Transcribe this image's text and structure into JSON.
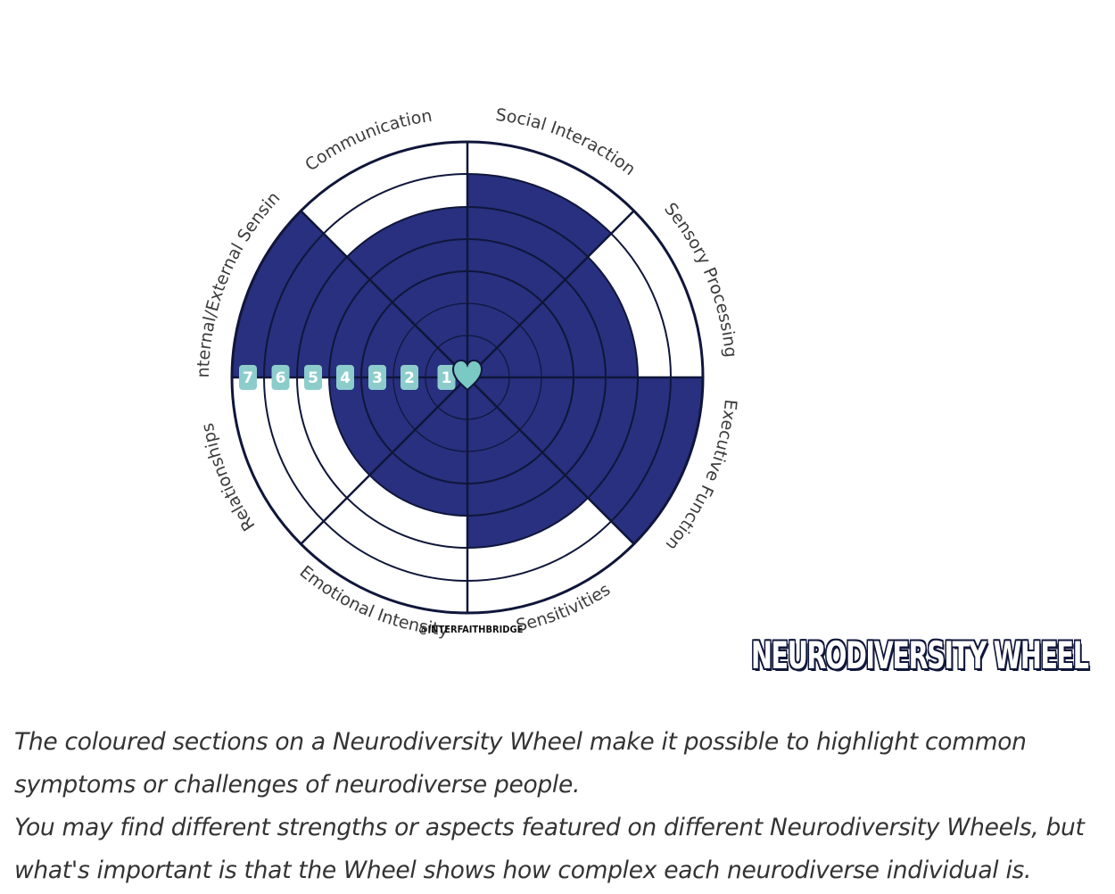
{
  "wheel": {
    "title": "NEURODIVERSITY WHEEL",
    "credit": "@INTERFAITHBRIDGE",
    "scale_labels": [
      "1",
      "2",
      "3",
      "4",
      "5",
      "6",
      "7"
    ],
    "heart_icon": "heart-icon",
    "colors": {
      "fill": "#28307f",
      "rings": "#10163a",
      "badge": "#8ccdcc",
      "heart": "#7bc9c4"
    },
    "segments": [
      {
        "label": "Social Interaction",
        "level": 6
      },
      {
        "label": "Sensory Processing",
        "level": 5
      },
      {
        "label": "Executive Function",
        "level": 7
      },
      {
        "label": "Sensitivities",
        "level": 5
      },
      {
        "label": "Emotional Intensity",
        "level": 4
      },
      {
        "label": "Relationships",
        "level": 4
      },
      {
        "label": "Internal/External Sensing",
        "level": 7
      },
      {
        "label": "Communication",
        "level": 5
      }
    ]
  },
  "caption": {
    "line1": "The coloured sections on a Neurodiversity Wheel make it possible to highlight common",
    "line2": "symptoms or challenges of neurodiverse people.",
    "line3": "You may find different strengths or aspects featured on different Neurodiversity Wheels, but",
    "line4": "what's important is that the Wheel shows how complex each neurodiverse individual is."
  }
}
